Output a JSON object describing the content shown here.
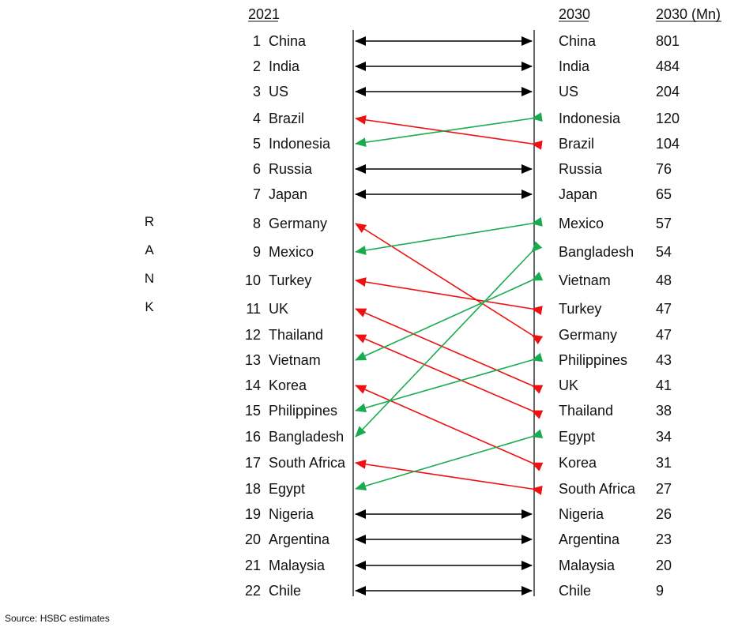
{
  "chart_data": {
    "type": "slope",
    "title": "",
    "headers": {
      "left": "2021",
      "right_country": "2030",
      "right_value": "2030 (Mn)"
    },
    "axis_label": "RANK",
    "source": "Source: HSBC estimates",
    "ranking_2021": [
      "China",
      "India",
      "US",
      "Brazil",
      "Indonesia",
      "Russia",
      "Japan",
      "Germany",
      "Mexico",
      "Turkey",
      "UK",
      "Thailand",
      "Vietnam",
      "Korea",
      "Philippines",
      "Bangladesh",
      "South Africa",
      "Egypt",
      "Nigeria",
      "Argentina",
      "Malaysia",
      "Chile"
    ],
    "ranking_2030": [
      {
        "country": "China",
        "value": 801
      },
      {
        "country": "India",
        "value": 484
      },
      {
        "country": "US",
        "value": 204
      },
      {
        "country": "Indonesia",
        "value": 120
      },
      {
        "country": "Brazil",
        "value": 104
      },
      {
        "country": "Russia",
        "value": 76
      },
      {
        "country": "Japan",
        "value": 65
      },
      {
        "country": "Mexico",
        "value": 57
      },
      {
        "country": "Bangladesh",
        "value": 54
      },
      {
        "country": "Vietnam",
        "value": 48
      },
      {
        "country": "Turkey",
        "value": 47
      },
      {
        "country": "Germany",
        "value": 47
      },
      {
        "country": "Philippines",
        "value": 43
      },
      {
        "country": "UK",
        "value": 41
      },
      {
        "country": "Thailand",
        "value": 38
      },
      {
        "country": "Egypt",
        "value": 34
      },
      {
        "country": "Korea",
        "value": 31
      },
      {
        "country": "South Africa",
        "value": 27
      },
      {
        "country": "Nigeria",
        "value": 26
      },
      {
        "country": "Argentina",
        "value": 23
      },
      {
        "country": "Malaysia",
        "value": 20
      },
      {
        "country": "Chile",
        "value": 9
      }
    ],
    "colors": {
      "same": "#000000",
      "down": "#ee1111",
      "up": "#1aab50",
      "text": "#111111"
    }
  }
}
